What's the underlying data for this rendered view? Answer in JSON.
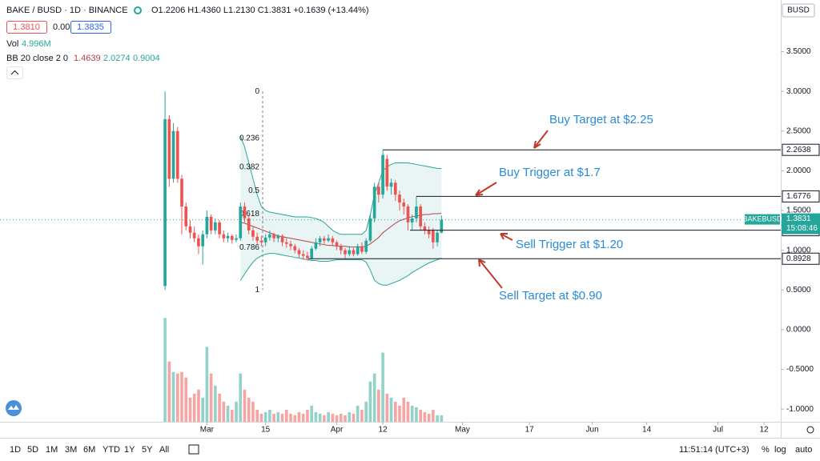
{
  "header": {
    "symbol": "BAKE / BUSD · 1D · BINANCE",
    "ohlc": "O1.2206 H1.4360 L1.2130 C1.3831 +0.1639 (+13.44%)",
    "bid": "1.3810",
    "spread": "0.0025",
    "ask": "1.3835",
    "vol_label": "Vol",
    "vol_value": "4.996M",
    "bb_label": "BB 20 close 2 0",
    "bb_values": [
      "1.4639",
      "2.0274",
      "0.9004"
    ]
  },
  "chart_data": {
    "type": "candlestick",
    "open": [
      0.55,
      2.65,
      1.9,
      2.5,
      1.9,
      1.55,
      1.3,
      1.22,
      1.15,
      1.05,
      1.2,
      1.42,
      1.25,
      1.35,
      1.2,
      1.15,
      1.18,
      1.13,
      1.15,
      1.55,
      1.4,
      1.25,
      1.17,
      1.12,
      1.1,
      1.16,
      1.2,
      1.15,
      1.18,
      1.1,
      1.08,
      1.05,
      1.0,
      0.95,
      0.93,
      0.9,
      1.02,
      1.1,
      1.15,
      1.12,
      1.15,
      1.1,
      1.05,
      1.0,
      0.95,
      1.0,
      0.95,
      1.05,
      0.98,
      1.12,
      1.4,
      1.8,
      1.7,
      2.15,
      1.8,
      1.85,
      1.7,
      1.6,
      1.55,
      1.35,
      1.4,
      1.55,
      1.3,
      1.25,
      1.25,
      1.1,
      1.2206
    ],
    "high": [
      3.0,
      2.7,
      2.6,
      2.55,
      1.95,
      1.6,
      1.38,
      1.3,
      1.2,
      1.25,
      1.5,
      1.45,
      1.4,
      1.38,
      1.25,
      1.22,
      1.2,
      1.2,
      1.6,
      1.6,
      1.45,
      1.3,
      1.22,
      1.18,
      1.2,
      1.25,
      1.22,
      1.2,
      1.2,
      1.15,
      1.12,
      1.08,
      1.03,
      1.0,
      0.98,
      1.05,
      1.15,
      1.18,
      1.18,
      1.2,
      1.18,
      1.12,
      1.08,
      1.03,
      1.05,
      1.03,
      1.08,
      1.1,
      1.15,
      1.45,
      1.85,
      1.85,
      2.26,
      2.2,
      1.9,
      1.88,
      1.75,
      1.65,
      1.58,
      1.45,
      1.68,
      1.58,
      1.35,
      1.3,
      1.28,
      1.25,
      1.436
    ],
    "low": [
      0.5,
      1.8,
      1.85,
      1.85,
      1.2,
      1.25,
      1.15,
      1.1,
      0.95,
      0.82,
      1.15,
      1.2,
      1.2,
      1.15,
      1.1,
      1.1,
      1.08,
      1.1,
      1.12,
      1.35,
      1.2,
      1.12,
      1.08,
      1.05,
      1.05,
      1.12,
      1.1,
      1.1,
      1.05,
      1.03,
      1.0,
      0.96,
      0.9,
      0.88,
      0.87,
      0.88,
      1.0,
      1.05,
      1.08,
      1.1,
      1.05,
      1.0,
      0.95,
      0.9,
      0.92,
      0.92,
      0.93,
      0.95,
      0.95,
      1.1,
      1.35,
      1.6,
      1.65,
      1.75,
      1.7,
      1.62,
      1.5,
      1.45,
      1.25,
      1.25,
      1.35,
      1.25,
      1.2,
      1.15,
      1.02,
      1.05,
      1.213
    ],
    "close": [
      2.65,
      1.9,
      2.5,
      1.9,
      1.55,
      1.3,
      1.22,
      1.15,
      1.05,
      1.2,
      1.42,
      1.25,
      1.35,
      1.2,
      1.15,
      1.18,
      1.13,
      1.15,
      1.55,
      1.4,
      1.25,
      1.17,
      1.12,
      1.1,
      1.16,
      1.2,
      1.15,
      1.18,
      1.1,
      1.08,
      1.05,
      1.0,
      0.95,
      0.93,
      0.9,
      1.02,
      1.1,
      1.15,
      1.12,
      1.15,
      1.1,
      1.05,
      1.0,
      0.95,
      1.0,
      0.95,
      1.05,
      0.98,
      1.12,
      1.4,
      1.8,
      1.7,
      2.2,
      1.8,
      1.85,
      1.7,
      1.6,
      1.55,
      1.35,
      1.4,
      1.55,
      1.3,
      1.25,
      1.2,
      1.1,
      1.22,
      1.3831
    ],
    "volume": [
      80,
      46.5,
      38.4,
      37.2,
      38.4,
      34.1,
      18.6,
      21.7,
      24.8,
      18.6,
      57.7,
      37.2,
      27.9,
      21.7,
      15.5,
      12.4,
      9.3,
      15.5,
      37.2,
      24.8,
      18.6,
      15.5,
      9.3,
      6.2,
      7.4,
      9.3,
      6.2,
      7.4,
      6.2,
      9.3,
      6.2,
      5,
      7.4,
      6.2,
      9.3,
      12.4,
      7.4,
      6.2,
      5,
      7.4,
      6.2,
      5,
      6.2,
      5,
      7.4,
      6.2,
      12.4,
      9.3,
      15.5,
      31,
      37.2,
      24.8,
      53.3,
      21.7,
      18.6,
      15.5,
      12.4,
      18.6,
      15.5,
      12.4,
      11.2,
      9.3,
      7.4,
      6.2,
      9.3,
      5,
      4.996
    ],
    "volume_lim": [
      0,
      325
    ],
    "bands": {
      "upper": [
        null,
        null,
        null,
        null,
        null,
        null,
        null,
        null,
        null,
        null,
        null,
        null,
        null,
        null,
        null,
        null,
        null,
        null,
        2.44,
        2.3,
        2.1,
        1.9,
        1.7,
        1.55,
        1.5,
        1.48,
        1.47,
        1.46,
        1.45,
        1.44,
        1.43,
        1.42,
        1.42,
        1.42,
        1.42,
        1.41,
        1.4,
        1.38,
        1.35,
        1.3,
        1.25,
        1.22,
        1.2,
        1.2,
        1.2,
        1.2,
        1.2,
        1.2,
        1.25,
        1.45,
        1.7,
        1.85,
        2.0,
        2.05,
        2.08,
        2.1,
        2.1,
        2.1,
        2.1,
        2.09,
        2.08,
        2.07,
        2.06,
        2.05,
        2.04,
        2.03,
        2.0274
      ],
      "middle": [
        null,
        null,
        null,
        null,
        null,
        null,
        null,
        null,
        null,
        null,
        null,
        null,
        null,
        null,
        null,
        null,
        null,
        null,
        1.35,
        1.34,
        1.32,
        1.3,
        1.28,
        1.26,
        1.24,
        1.22,
        1.2,
        1.18,
        1.17,
        1.16,
        1.15,
        1.14,
        1.13,
        1.12,
        1.11,
        1.1,
        1.09,
        1.08,
        1.07,
        1.06,
        1.06,
        1.05,
        1.05,
        1.05,
        1.04,
        1.04,
        1.04,
        1.04,
        1.05,
        1.08,
        1.12,
        1.16,
        1.22,
        1.26,
        1.3,
        1.34,
        1.37,
        1.39,
        1.41,
        1.42,
        1.43,
        1.44,
        1.45,
        1.45,
        1.46,
        1.46,
        1.4639
      ],
      "lower": [
        null,
        null,
        null,
        null,
        null,
        null,
        null,
        null,
        null,
        null,
        null,
        null,
        null,
        null,
        null,
        null,
        null,
        null,
        0.62,
        0.7,
        0.78,
        0.85,
        0.9,
        0.93,
        0.95,
        0.96,
        0.96,
        0.95,
        0.94,
        0.93,
        0.92,
        0.91,
        0.9,
        0.89,
        0.88,
        0.87,
        0.87,
        0.86,
        0.86,
        0.86,
        0.87,
        0.88,
        0.88,
        0.88,
        0.88,
        0.88,
        0.88,
        0.88,
        0.85,
        0.75,
        0.62,
        0.58,
        0.56,
        0.56,
        0.58,
        0.6,
        0.62,
        0.65,
        0.68,
        0.72,
        0.75,
        0.78,
        0.81,
        0.84,
        0.86,
        0.88,
        0.9004
      ]
    },
    "colors": {
      "up": "#26a69a",
      "down": "#ef5350",
      "volume_up": "#93d2c8",
      "volume_down": "#f5a6a4",
      "band": "#26a69a",
      "basis": "#b2434e",
      "band_fill": "#e3f3f1"
    },
    "fib": {
      "levels": [
        0,
        0.236,
        0.382,
        0.5,
        0.618,
        0.786,
        1
      ],
      "high": 3.0,
      "low": 0.5
    },
    "levels": [
      2.2638,
      1.6776,
      1.2521,
      0.8928
    ],
    "annotations": [
      "Buy Target at $2.25",
      "Buy Trigger at $1.7",
      "Sell Trigger at $1.20",
      "Sell Target at $0.90"
    ],
    "last_price": 1.3831,
    "symbol_tag": "BAKEBUSD",
    "countdown": "15:08:46",
    "currency": "BUSD",
    "xlim": [
      -39.4,
      147
    ],
    "ylim": [
      -1.16,
      4.15
    ],
    "xticks": [
      {
        "value": 10,
        "label": "Mar"
      },
      {
        "value": 24,
        "label": "15"
      },
      {
        "value": 41,
        "label": "Apr"
      },
      {
        "value": 52,
        "label": "12"
      },
      {
        "value": 71,
        "label": "May"
      },
      {
        "value": 87,
        "label": "17"
      },
      {
        "value": 102,
        "label": "Jun"
      },
      {
        "value": 115,
        "label": "14"
      },
      {
        "value": 132,
        "label": "Jul"
      },
      {
        "value": 143,
        "label": "12"
      }
    ],
    "yticks": [
      {
        "value": 3.5,
        "label": "3.5000"
      },
      {
        "value": 3.0,
        "label": "3.0000"
      },
      {
        "value": 2.5,
        "label": "2.5000"
      },
      {
        "value": 2.0,
        "label": "2.0000"
      },
      {
        "value": 1.5,
        "label": "1.5000"
      },
      {
        "value": 1.0,
        "label": "1.0000"
      },
      {
        "value": 0.5,
        "label": "0.5000"
      },
      {
        "value": 0,
        "label": "0.0000"
      },
      {
        "value": -0.5,
        "label": "-0.5000"
      },
      {
        "value": -1.0,
        "label": "-1.0000"
      }
    ]
  },
  "toolbar": {
    "ranges": [
      "1D",
      "5D",
      "1M",
      "3M",
      "6M",
      "YTD",
      "1Y",
      "5Y",
      "All"
    ],
    "time": "11:51:14 (UTC+3)",
    "percent": "%",
    "log": "log",
    "auto": "auto"
  }
}
